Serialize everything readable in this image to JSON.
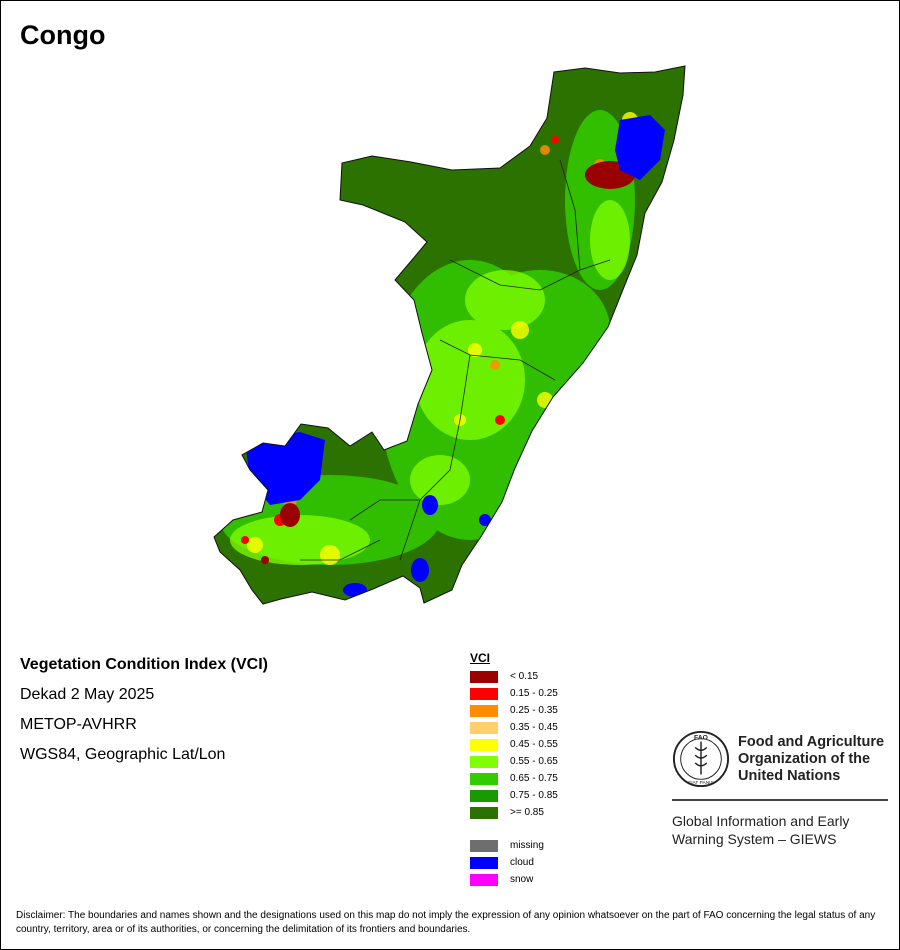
{
  "title": "Congo",
  "info": {
    "product": "Vegetation Condition Index (VCI)",
    "period": "Dekad 2 May 2025",
    "sensor": "METOP-AVHRR",
    "projection": "WGS84, Geographic Lat/Lon"
  },
  "legend": {
    "heading": "VCI",
    "classes": [
      {
        "label": "< 0.15",
        "color": "#9b0000"
      },
      {
        "label": "0.15 - 0.25",
        "color": "#ff0000"
      },
      {
        "label": "0.25 - 0.35",
        "color": "#ff8c00"
      },
      {
        "label": "0.35 - 0.45",
        "color": "#ffcf6b"
      },
      {
        "label": "0.45 - 0.55",
        "color": "#ffff00"
      },
      {
        "label": "0.55 - 0.65",
        "color": "#80ff00"
      },
      {
        "label": "0.65 - 0.75",
        "color": "#33cc00"
      },
      {
        "label": "0.75 - 0.85",
        "color": "#1a9a00"
      },
      {
        "label": ">= 0.85",
        "color": "#2c7200"
      }
    ],
    "extra": [
      {
        "label": "missing",
        "color": "#6e6e6e"
      },
      {
        "label": "cloud",
        "color": "#0000ff"
      },
      {
        "label": "snow",
        "color": "#ff00ff"
      }
    ]
  },
  "org": {
    "logo_letters": "FAO",
    "logo_motto": "FIAT PANIS",
    "name_line1": "Food and Agriculture",
    "name_line2": "Organization of the",
    "name_line3": "United Nations",
    "giews_line1": "Global Information and Early",
    "giews_line2": "Warning System – GIEWS"
  },
  "disclaimer": "Disclaimer: The boundaries and names shown and the designations used on this map do not imply the expression of any opinion whatsoever on the part of FAO concerning the legal status of any country, territory, area or of its authorities, or concerning the delimitation of its frontiers and boundaries."
}
